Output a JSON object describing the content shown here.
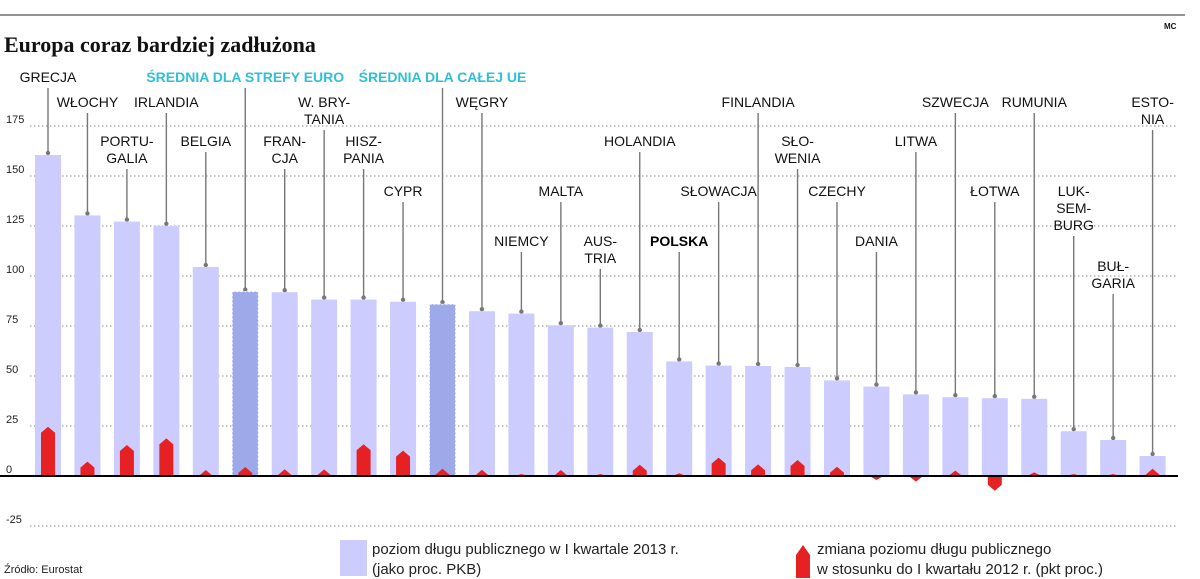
{
  "header": {
    "title": "Europa coraz bardziej zadłużona",
    "credit": "MC"
  },
  "colors": {
    "debt_bar": "#ccccff",
    "average_bar": "#9da9e8",
    "change_marker": "#e52124",
    "average_label": "#2fc0d8",
    "leader_line": "#777777",
    "grid": "#888888",
    "axis": "#000000"
  },
  "legend": {
    "debt_line1": "poziom długu publicznego w I kwartale 2013 r.",
    "debt_line2": "(jako proc. PKB)",
    "change_line1": "zmiana poziomu długu publicznego",
    "change_line2": "w stosunku do I kwartału 2012 r. (pkt proc.)"
  },
  "source": "Źródło: Eurostat",
  "chart_data": {
    "type": "bar",
    "title": "Europa coraz bardziej zadłużona",
    "ylim": [
      -25,
      175
    ],
    "yticks": [
      -25,
      0,
      25,
      50,
      75,
      100,
      125,
      150,
      175
    ],
    "grid": true,
    "legend_position": "bottom",
    "categories": [
      [
        "GRECJA"
      ],
      [
        "WŁOCHY"
      ],
      [
        "PORTU-",
        "GALIA"
      ],
      [
        "IRLANDIA"
      ],
      [
        "BELGIA"
      ],
      [
        "ŚREDNIA DLA STREFY EURO"
      ],
      [
        "FRAN-",
        "CJA"
      ],
      [
        "W. BRY-",
        "TANIA"
      ],
      [
        "HISZ-",
        "PANIA"
      ],
      [
        "CYPR"
      ],
      [
        "ŚREDNIA DLA CAŁEJ UE"
      ],
      [
        "WĘGRY"
      ],
      [
        "NIEMCY"
      ],
      [
        "MALTA"
      ],
      [
        "AUS-",
        "TRIA"
      ],
      [
        "HOLANDIA"
      ],
      [
        "POLSKA"
      ],
      [
        "SŁOWACJA"
      ],
      [
        "FINLANDIA"
      ],
      [
        "SŁO-",
        "WENIA"
      ],
      [
        "CZECHY"
      ],
      [
        "DANIA"
      ],
      [
        "LITWA"
      ],
      [
        "SZWECJA"
      ],
      [
        "ŁOTWA"
      ],
      [
        "RUMUNIA"
      ],
      [
        "LUK-",
        "SEM-",
        "BURG"
      ],
      [
        "BUŁ-",
        "GARIA"
      ],
      [
        "ESTO-",
        "NIA"
      ]
    ],
    "is_average": [
      false,
      false,
      false,
      false,
      false,
      true,
      false,
      false,
      false,
      false,
      true,
      false,
      false,
      false,
      false,
      false,
      false,
      false,
      false,
      false,
      false,
      false,
      false,
      false,
      false,
      false,
      false,
      false,
      false
    ],
    "highlight": [
      false,
      false,
      false,
      false,
      false,
      false,
      false,
      false,
      false,
      false,
      false,
      false,
      false,
      false,
      false,
      false,
      true,
      false,
      false,
      false,
      false,
      false,
      false,
      false,
      false,
      false,
      false,
      false,
      false
    ],
    "series": [
      {
        "name": "poziom długu publicznego w I kwartale 2013 r. (jako proc. PKB)",
        "values": [
          160.5,
          130.3,
          127.2,
          125.1,
          104.5,
          92.2,
          91.9,
          88.2,
          88.2,
          87.1,
          85.9,
          82.4,
          81.2,
          75.4,
          74.2,
          72.0,
          57.3,
          55.2,
          55.0,
          54.5,
          47.8,
          44.7,
          40.8,
          39.4,
          38.9,
          38.6,
          22.4,
          18.0,
          10.0
        ]
      },
      {
        "name": "zmiana poziomu długu publicznego w stosunku do I kwartału 2012 r. (pkt proc.)",
        "values": [
          24.6,
          7.2,
          15.5,
          18.8,
          3.0,
          4.5,
          3.4,
          3.3,
          15.9,
          12.7,
          3.6,
          3.1,
          0.7,
          3.0,
          1.0,
          5.6,
          1.4,
          9.2,
          5.8,
          8.0,
          4.6,
          -2.0,
          -2.8,
          2.7,
          -7.4,
          1.8,
          0.4,
          1.0,
          3.6
        ]
      }
    ]
  }
}
